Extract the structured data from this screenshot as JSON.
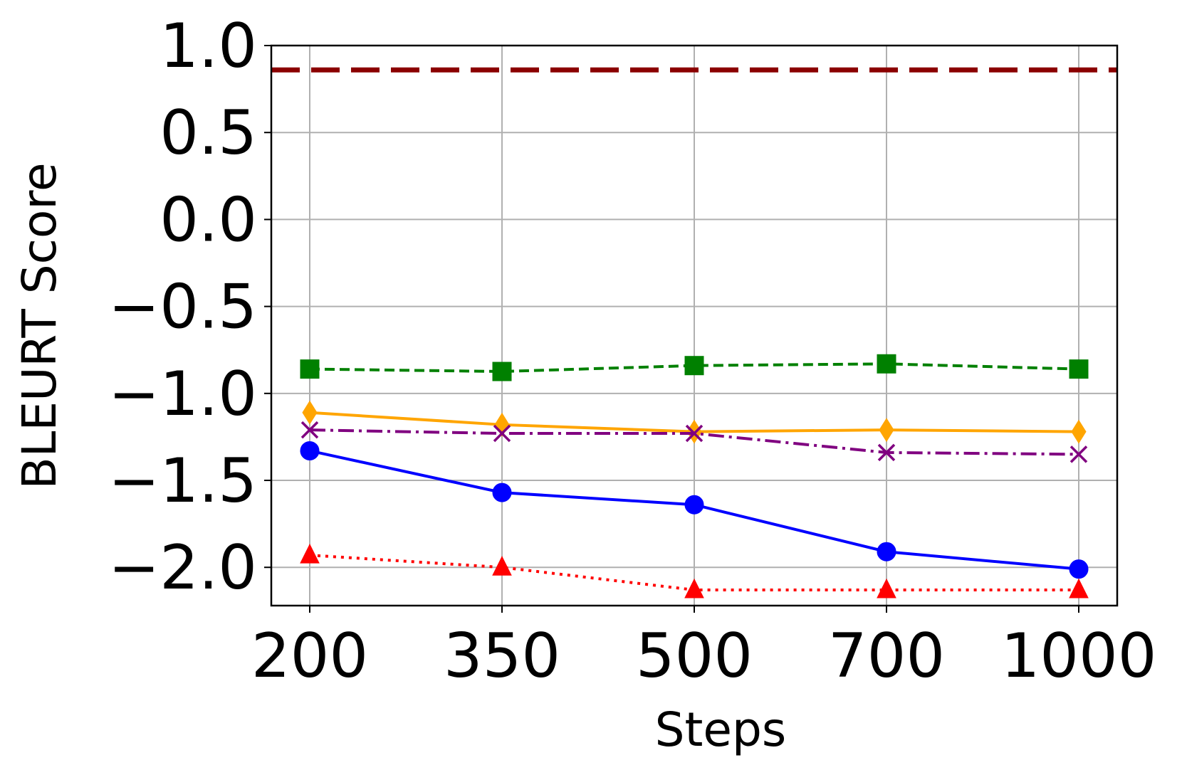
{
  "chart_data": {
    "type": "line",
    "x_label": "Steps",
    "y_label": "BLEURT Score",
    "categories": [
      "200",
      "350",
      "500",
      "700",
      "1000"
    ],
    "ylim": [
      -2.22,
      1.0
    ],
    "yticks": [
      {
        "value": 1.0,
        "label": "1.0"
      },
      0.5,
      {
        "value": 0.0,
        "label": "0.0"
      },
      {
        "value": -0.5,
        "label": "−0.5"
      },
      {
        "value": -1.0,
        "label": "−1.0"
      },
      {
        "value": -1.5,
        "label": "−1.5"
      },
      {
        "value": -2.0,
        "label": "−2.0"
      }
    ],
    "grid": true,
    "reference_line": {
      "value": 0.86,
      "color": "#8b0000"
    },
    "series": [
      {
        "color": "#008000",
        "marker": "square",
        "dash": "dashed",
        "values": [
          -0.86,
          -0.874,
          -0.84,
          -0.83,
          -0.86
        ]
      },
      {
        "color": "#ffa500",
        "marker": "diamond",
        "dash": "solid",
        "values": [
          -1.11,
          -1.18,
          -1.22,
          -1.21,
          -1.22
        ]
      },
      {
        "color": "#800080",
        "marker": "x",
        "dash": "dashdot",
        "values": [
          -1.21,
          -1.23,
          -1.23,
          -1.34,
          -1.35
        ]
      },
      {
        "color": "#0000ff",
        "marker": "circle",
        "dash": "solid",
        "values": [
          -1.33,
          -1.57,
          -1.64,
          -1.91,
          -2.01
        ]
      },
      {
        "color": "#ff0000",
        "marker": "triangle",
        "dash": "dotted",
        "values": [
          -1.93,
          -2.0,
          -2.13,
          -2.13,
          -2.13
        ]
      }
    ]
  }
}
